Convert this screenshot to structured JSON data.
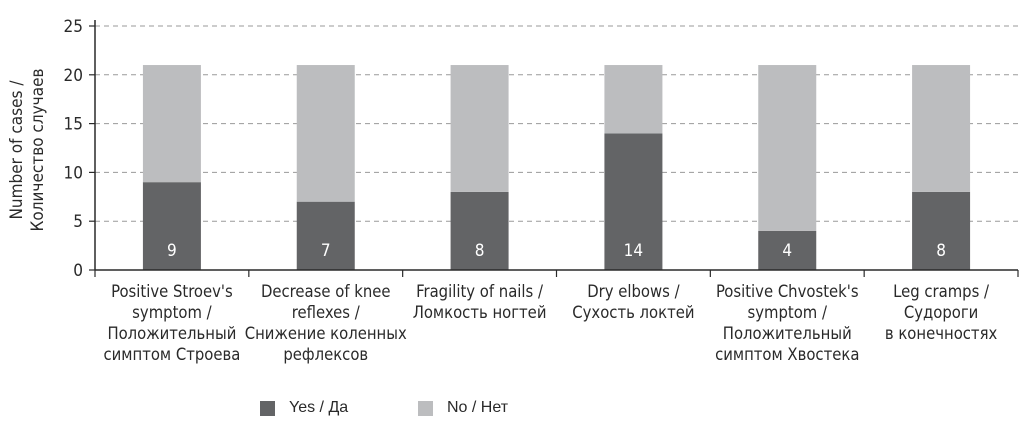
{
  "chart_data": {
    "type": "bar",
    "stacked": true,
    "categories": [
      [
        "Positive Stroev's",
        "symptom /",
        "Положительный",
        "симптом Строева"
      ],
      [
        "Decrease of knee",
        "reflexes /",
        "Снижение коленных",
        "рефлексов"
      ],
      [
        "Fragility of nails /",
        "Ломкость ногтей"
      ],
      [
        "Dry elbows /",
        "Сухость локтей"
      ],
      [
        "Positive Chvostek's",
        "symptom /",
        "Положительный",
        "симптом Хвостека"
      ],
      [
        "Leg cramps /",
        "Судороги",
        "в конечностях"
      ]
    ],
    "series": [
      {
        "name": "Yes / Да",
        "color": "#636466",
        "values": [
          9,
          7,
          8,
          14,
          4,
          8
        ],
        "labels": [
          "9",
          "7",
          "8",
          "14",
          "4",
          "8"
        ]
      },
      {
        "name": "No / Нет",
        "color": "#bcbdbf",
        "values": [
          12,
          14,
          13,
          7,
          17,
          13
        ]
      }
    ],
    "ylabel": [
      "Number of cases /",
      "Количество случаев"
    ],
    "ylim": [
      0,
      25
    ],
    "yticks": [
      0,
      5,
      10,
      15,
      20,
      25
    ],
    "grid": true,
    "legend": "bottom"
  }
}
